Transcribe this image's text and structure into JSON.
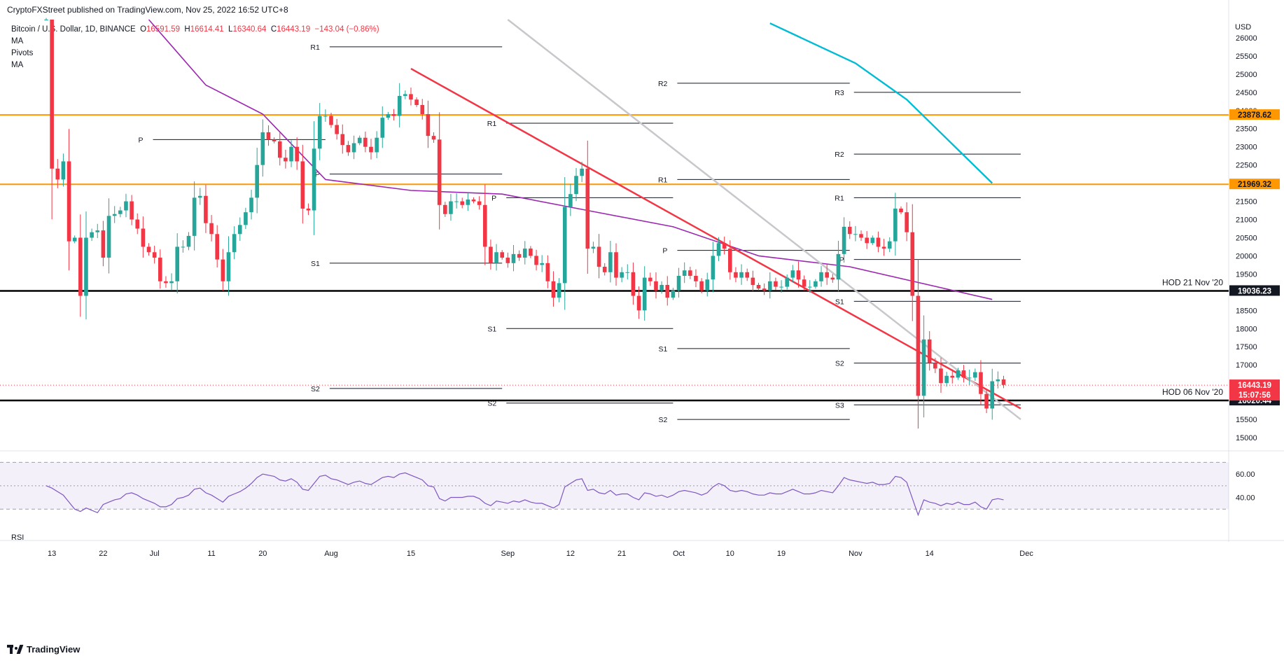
{
  "header": {
    "publisher": "CryptoFXStreet published on TradingView.com, Nov 25, 2022 16:52 UTC+8"
  },
  "legend": {
    "symbol": "Bitcoin / U.S. Dollar, 1D, BINANCE",
    "open_label": "O",
    "open": "16591.59",
    "high_label": "H",
    "high": "16614.41",
    "low_label": "L",
    "low": "16340.64",
    "close_label": "C",
    "close": "16443.19",
    "change": "−143.04 (−0.86%)",
    "indicators": [
      "MA",
      "Pivots",
      "MA"
    ]
  },
  "axis": {
    "currency": "USD"
  },
  "rsi": {
    "label": "RSI"
  },
  "footer": {
    "brand": "TradingView"
  },
  "colors": {
    "up": "#26a69a",
    "down": "#f23645",
    "ma_fast": "#9c27b0",
    "ma_slow": "#00bcd4",
    "orange": "#ff9800",
    "trend_red": "#f23645",
    "trend_gray": "#c7c7cc",
    "rsi_line": "#7e57c2"
  },
  "chart_data": [
    {
      "type": "candlestick",
      "title": "Bitcoin / U.S. Dollar, 1D, BINANCE",
      "ylim": [
        14750,
        26500
      ],
      "y_ticks": [
        15000,
        15500,
        16000,
        16500,
        17000,
        17500,
        18000,
        18500,
        19000,
        19500,
        20000,
        20500,
        21000,
        21500,
        22000,
        22500,
        23000,
        23500,
        24000,
        24500,
        25000,
        25500,
        26000
      ],
      "x_ticks": [
        {
          "label": "13",
          "date": "2022-06-13"
        },
        {
          "label": "22",
          "date": "2022-06-22"
        },
        {
          "label": "Jul",
          "date": "2022-07-01"
        },
        {
          "label": "11",
          "date": "2022-07-11"
        },
        {
          "label": "20",
          "date": "2022-07-20"
        },
        {
          "label": "Aug",
          "date": "2022-08-01"
        },
        {
          "label": "15",
          "date": "2022-08-15"
        },
        {
          "label": "Sep",
          "date": "2022-09-01"
        },
        {
          "label": "12",
          "date": "2022-09-12"
        },
        {
          "label": "21",
          "date": "2022-09-21"
        },
        {
          "label": "Oct",
          "date": "2022-10-01"
        },
        {
          "label": "10",
          "date": "2022-10-10"
        },
        {
          "label": "19",
          "date": "2022-10-19"
        },
        {
          "label": "Nov",
          "date": "2022-11-01"
        },
        {
          "label": "14",
          "date": "2022-11-14"
        },
        {
          "label": "Dec",
          "date": "2022-12-01"
        }
      ],
      "series_close": {
        "start_date": "2022-06-12",
        "values": [
          26600,
          22400,
          22100,
          22600,
          20400,
          20500,
          18900,
          20500,
          20650,
          20700,
          19950,
          21100,
          21150,
          21250,
          21500,
          21000,
          20750,
          20250,
          20100,
          19950,
          19300,
          19250,
          19300,
          20250,
          20250,
          20550,
          21600,
          21650,
          20900,
          20600,
          19900,
          19300,
          20100,
          20600,
          20850,
          21200,
          21600,
          22500,
          23400,
          23200,
          23150,
          22700,
          22600,
          23000,
          22600,
          21300,
          21250,
          22950,
          23850,
          23850,
          23600,
          23350,
          23050,
          22850,
          23100,
          23250,
          23000,
          22850,
          23250,
          23800,
          23900,
          23850,
          24400,
          24450,
          24300,
          24150,
          23900,
          23300,
          23200,
          21400,
          21150,
          21500,
          21500,
          21400,
          21550,
          21500,
          21400,
          20250,
          19800,
          20100,
          19950,
          19800,
          20050,
          19950,
          20200,
          20000,
          19750,
          19800,
          19300,
          18850,
          19250,
          21350,
          21700,
          22200,
          22400,
          20200,
          20250,
          19700,
          19550,
          20100,
          19400,
          19550,
          19550,
          18900,
          18500,
          19400,
          19300,
          19050,
          19200,
          18850,
          19050,
          19450,
          19600,
          19450,
          19300,
          19050,
          19350,
          20000,
          20350,
          20200,
          19550,
          19400,
          19550,
          19400,
          19200,
          19100,
          19050,
          19300,
          19150,
          19150,
          19400,
          19600,
          19350,
          19150,
          19150,
          19300,
          19550,
          19400,
          19350,
          20050,
          20800,
          20600,
          20600,
          20500,
          20350,
          20500,
          20250,
          20200,
          20400,
          21300,
          21200,
          20650,
          18900,
          16150,
          17700,
          17050,
          16900,
          16500,
          16700,
          16650,
          16850,
          16650,
          16650,
          16800,
          16200,
          15800,
          16550,
          16600,
          16450
        ],
        "last_close": 16443.19
      },
      "moving_averages": [
        {
          "name": "MA",
          "approx_points": [
            [
              "2022-06-30",
              26500
            ],
            [
              "2022-07-10",
              24700
            ],
            [
              "2022-07-20",
              23900
            ],
            [
              "2022-07-31",
              22100
            ],
            [
              "2022-08-15",
              21800
            ],
            [
              "2022-08-31",
              21700
            ],
            [
              "2022-09-15",
              21250
            ],
            [
              "2022-09-30",
              20800
            ],
            [
              "2022-10-15",
              20000
            ],
            [
              "2022-10-31",
              19700
            ],
            [
              "2022-11-25",
              18800
            ]
          ]
        },
        {
          "name": "MA",
          "approx_points": [
            [
              "2022-10-17",
              26400
            ],
            [
              "2022-11-01",
              25300
            ],
            [
              "2022-11-10",
              24300
            ],
            [
              "2022-11-25",
              22000
            ]
          ]
        }
      ],
      "horizontal_levels": [
        {
          "value": 23878.62,
          "label": "23878.62",
          "color": "#ff9800"
        },
        {
          "value": 21969.32,
          "label": "21969.32",
          "color": "#ff9800"
        },
        {
          "value": 19036.23,
          "label": "19036.23",
          "color": "#000000",
          "annotation": "HOD 21 Nov '20"
        },
        {
          "value": 16020.44,
          "label": "16020.44",
          "color": "#000000",
          "annotation": "HOD 06 Nov '20"
        }
      ],
      "current_price": {
        "value": 16443.19,
        "label": "16443.19",
        "countdown": "15:07:56"
      },
      "pivots": [
        {
          "label": "P",
          "value": 23200,
          "from": "2022-06-30",
          "to": "2022-07-31"
        },
        {
          "label": "R1",
          "value": 25750,
          "from": "2022-07-31",
          "to": "2022-08-31"
        },
        {
          "label": "P",
          "value": 22250,
          "from": "2022-07-31",
          "to": "2022-08-31"
        },
        {
          "label": "S1",
          "value": 19800,
          "from": "2022-07-31",
          "to": "2022-08-31"
        },
        {
          "label": "S2",
          "value": 16350,
          "from": "2022-07-31",
          "to": "2022-08-31"
        },
        {
          "label": "R1",
          "value": 23650,
          "from": "2022-08-31",
          "to": "2022-09-30"
        },
        {
          "label": "P",
          "value": 21600,
          "from": "2022-08-31",
          "to": "2022-09-30"
        },
        {
          "label": "S1",
          "value": 18000,
          "from": "2022-08-31",
          "to": "2022-09-30"
        },
        {
          "label": "S2",
          "value": 15950,
          "from": "2022-08-31",
          "to": "2022-09-30"
        },
        {
          "label": "R2",
          "value": 24750,
          "from": "2022-09-30",
          "to": "2022-10-31"
        },
        {
          "label": "R1",
          "value": 22100,
          "from": "2022-09-30",
          "to": "2022-10-31"
        },
        {
          "label": "P",
          "value": 20150,
          "from": "2022-09-30",
          "to": "2022-10-31"
        },
        {
          "label": "S1",
          "value": 17450,
          "from": "2022-09-30",
          "to": "2022-10-31"
        },
        {
          "label": "S2",
          "value": 15500,
          "from": "2022-09-30",
          "to": "2022-10-31"
        },
        {
          "label": "R3",
          "value": 24500,
          "from": "2022-10-31",
          "to": "2022-11-30"
        },
        {
          "label": "R2",
          "value": 22800,
          "from": "2022-10-31",
          "to": "2022-11-30"
        },
        {
          "label": "R1",
          "value": 21600,
          "from": "2022-10-31",
          "to": "2022-11-30"
        },
        {
          "label": "P",
          "value": 19900,
          "from": "2022-10-31",
          "to": "2022-11-30"
        },
        {
          "label": "S1",
          "value": 18750,
          "from": "2022-10-31",
          "to": "2022-11-30"
        },
        {
          "label": "S2",
          "value": 17050,
          "from": "2022-10-31",
          "to": "2022-11-30"
        },
        {
          "label": "S3",
          "value": 15900,
          "from": "2022-10-31",
          "to": "2022-11-30"
        }
      ],
      "trend_lines": [
        {
          "color": "#f23645",
          "from": [
            "2022-08-15",
            25150
          ],
          "to": [
            "2022-11-30",
            15800
          ]
        },
        {
          "color": "#c7c7cc",
          "from": [
            "2022-09-01",
            26500
          ],
          "to": [
            "2022-11-30",
            15500
          ]
        }
      ]
    },
    {
      "type": "line",
      "title": "RSI",
      "ylim": [
        20,
        75
      ],
      "y_ticks": [
        40,
        60
      ],
      "bands": [
        30,
        50,
        70
      ],
      "values": [
        50,
        48,
        45,
        42,
        36,
        30,
        28,
        31,
        29,
        27,
        34,
        36,
        38,
        39,
        43,
        44,
        42,
        39,
        37,
        35,
        32,
        32,
        34,
        39,
        40,
        42,
        47,
        48,
        44,
        42,
        39,
        36,
        41,
        43,
        45,
        48,
        52,
        57,
        60,
        59,
        58,
        55,
        54,
        56,
        53,
        47,
        46,
        52,
        58,
        59,
        56,
        55,
        53,
        51,
        53,
        54,
        52,
        51,
        54,
        57,
        58,
        57,
        60,
        61,
        59,
        57,
        55,
        50,
        49,
        39,
        37,
        40,
        40,
        40,
        41,
        41,
        39,
        35,
        33,
        37,
        36,
        35,
        37,
        36,
        38,
        36,
        35,
        35,
        33,
        31,
        34,
        49,
        52,
        55,
        56,
        46,
        47,
        44,
        43,
        46,
        42,
        43,
        43,
        40,
        38,
        44,
        43,
        41,
        42,
        40,
        42,
        45,
        46,
        45,
        44,
        42,
        44,
        49,
        52,
        50,
        46,
        45,
        46,
        45,
        43,
        42,
        42,
        44,
        43,
        43,
        45,
        47,
        45,
        43,
        43,
        44,
        46,
        45,
        44,
        50,
        57,
        55,
        54,
        53,
        52,
        53,
        51,
        51,
        52,
        58,
        57,
        53,
        39,
        25,
        38,
        36,
        35,
        33,
        35,
        34,
        36,
        34,
        34,
        36,
        32,
        30,
        38,
        39,
        38
      ]
    }
  ]
}
